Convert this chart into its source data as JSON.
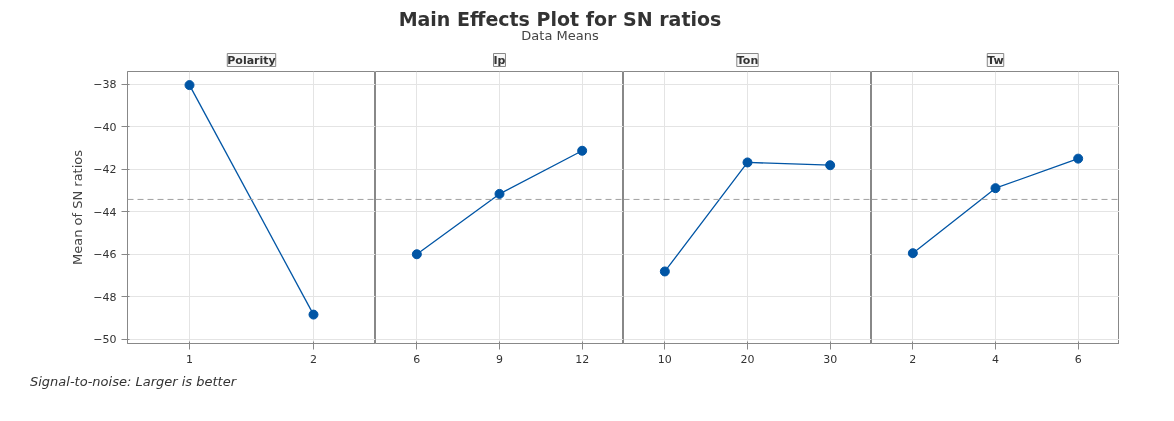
{
  "chart_data": [
    {
      "type": "other",
      "title": "Main Effects Plot for SN ratios",
      "subtitle": "Data Means",
      "annotations": [
        "Signal-to-noise: Larger is better"
      ]
    },
    {
      "type": "line",
      "title": "Polarity",
      "ylabel": "Mean of SN ratios",
      "categories": [
        "1",
        "2"
      ],
      "series": [
        {
          "color": "#0055a5",
          "values": [
            -38.04,
            -48.84
          ]
        }
      ],
      "ylim": [
        -50.2,
        -37.4
      ],
      "yticks": [
        -50,
        -48,
        -46,
        -44,
        -42,
        -40,
        -38
      ],
      "ref_lines": [
        {
          "axis": "y",
          "value": -43.42,
          "color": "#a0a0a0",
          "line_style": "dashed"
        }
      ],
      "grid": true,
      "marker": "circle",
      "line_style": "solid"
    },
    {
      "type": "line",
      "title": "Ip",
      "categories": [
        "6",
        "9",
        "12"
      ],
      "series": [
        {
          "color": "#0055a5",
          "values": [
            -46.0,
            -43.16,
            -41.13
          ]
        }
      ],
      "ylim": [
        -50.2,
        -37.4
      ],
      "yticks": [
        -50,
        -48,
        -46,
        -44,
        -42,
        -40,
        -38
      ],
      "ref_lines": [
        {
          "axis": "y",
          "value": -43.42,
          "color": "#a0a0a0",
          "line_style": "dashed"
        }
      ],
      "grid": true,
      "marker": "circle",
      "line_style": "solid",
      "tick_labels": "x"
    },
    {
      "type": "line",
      "title": "Ton",
      "categories": [
        "10",
        "20",
        "30"
      ],
      "series": [
        {
          "color": "#0055a5",
          "values": [
            -46.81,
            -41.68,
            -41.81
          ]
        }
      ],
      "ylim": [
        -50.2,
        -37.4
      ],
      "yticks": [
        -50,
        -48,
        -46,
        -44,
        -42,
        -40,
        -38
      ],
      "ref_lines": [
        {
          "axis": "y",
          "value": -43.42,
          "color": "#a0a0a0",
          "line_style": "dashed"
        }
      ],
      "grid": true,
      "marker": "circle",
      "line_style": "solid",
      "tick_labels": "x"
    },
    {
      "type": "line",
      "title": "Tw",
      "categories": [
        "2",
        "4",
        "6"
      ],
      "series": [
        {
          "color": "#0055a5",
          "values": [
            -45.95,
            -42.89,
            -41.5
          ]
        }
      ],
      "ylim": [
        -50.2,
        -37.4
      ],
      "yticks": [
        -50,
        -48,
        -46,
        -44,
        -42,
        -40,
        -38
      ],
      "ref_lines": [
        {
          "axis": "y",
          "value": -43.42,
          "color": "#a0a0a0",
          "line_style": "dashed"
        }
      ],
      "grid": true,
      "marker": "circle",
      "line_style": "solid",
      "tick_labels": "x"
    }
  ]
}
